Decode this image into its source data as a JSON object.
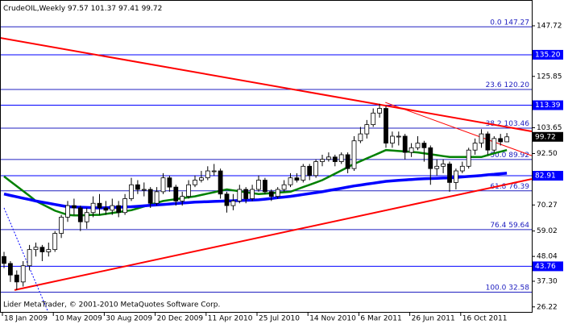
{
  "chart_data": {
    "type": "candlestick",
    "symbol": "CrudeOIL,Weekly",
    "footer": "Lider MetaTrader, © 2001-2010 MetaQuotes Software Corp.",
    "categories": [
      "18 Jan 2009",
      null,
      null,
      null,
      null,
      null,
      null,
      null,
      "10 May 2009",
      null,
      null,
      null,
      null,
      null,
      null,
      null,
      "30 Aug 2009",
      null,
      null,
      null,
      null,
      null,
      null,
      null,
      "20 Dec 2009",
      null,
      null,
      null,
      null,
      null,
      null,
      null,
      "11 Apr 2010",
      null,
      null,
      null,
      null,
      null,
      null,
      null,
      "25 Jul 2010",
      null,
      null,
      null,
      null,
      null,
      null,
      null,
      "14 Nov 2010",
      null,
      null,
      null,
      null,
      null,
      null,
      null,
      "6 Mar 2011",
      null,
      null,
      null,
      null,
      null,
      null,
      null,
      "26 Jun 2011",
      null,
      null,
      null,
      null,
      null,
      null,
      null,
      "16 Oct 2011",
      null,
      null,
      null,
      null,
      null,
      null,
      null
    ],
    "open": [
      48,
      45,
      40,
      37,
      44,
      51,
      52,
      50,
      51,
      58,
      65,
      70,
      69,
      63,
      67,
      71,
      69,
      68,
      70,
      67,
      73,
      79,
      77,
      77,
      71,
      76,
      82,
      78,
      72,
      74,
      79,
      81,
      82,
      85,
      85,
      75,
      70,
      72,
      77,
      73,
      77,
      81,
      76,
      74,
      77,
      79,
      82,
      81,
      87,
      83,
      89,
      90,
      91,
      89,
      92,
      86,
      98,
      101,
      105,
      110,
      112,
      97,
      100,
      100,
      93,
      95,
      97,
      95,
      86,
      87,
      88,
      80,
      85,
      87,
      94,
      97,
      101,
      94,
      99,
      97.57
    ],
    "high": [
      50,
      46,
      42,
      46,
      53,
      54,
      53,
      54,
      59,
      66,
      72,
      73,
      70,
      69,
      74,
      75,
      72,
      73,
      72,
      75,
      82,
      81,
      80,
      78,
      78,
      84,
      83,
      79,
      76,
      81,
      83,
      85,
      87,
      88,
      86,
      76,
      75,
      79,
      78,
      79,
      83,
      82,
      77,
      78,
      81,
      84,
      84,
      88,
      88,
      90,
      92,
      93,
      92,
      93,
      93,
      100,
      104,
      107,
      112,
      114,
      113,
      102,
      102,
      101,
      97,
      100,
      98,
      96,
      90,
      90,
      89,
      86,
      89,
      95,
      99,
      103,
      102,
      100,
      101,
      101.37
    ],
    "low": [
      43,
      37,
      33.5,
      35,
      42,
      48,
      46,
      48,
      50,
      56,
      63,
      66,
      59,
      60,
      65,
      66,
      66,
      66,
      65,
      66,
      72,
      75,
      74,
      69,
      70,
      75,
      76,
      70,
      70,
      73,
      78,
      80,
      81,
      83,
      73,
      67,
      68,
      71,
      71,
      72,
      76,
      75,
      72,
      73,
      76,
      78,
      80,
      80,
      81,
      82,
      87,
      89,
      87,
      88,
      84,
      85,
      97,
      99,
      104,
      108,
      95,
      95,
      96,
      90,
      91,
      94,
      89,
      79,
      83,
      84,
      76,
      77,
      84,
      86,
      92,
      95,
      92,
      93,
      96,
      97.41
    ],
    "close": [
      45,
      40,
      37,
      44,
      51,
      52,
      50,
      51,
      58,
      65,
      70,
      69,
      63,
      67,
      71,
      69,
      68,
      70,
      67,
      73,
      79,
      77,
      77,
      71,
      76,
      82,
      78,
      72,
      74,
      79,
      81,
      82,
      85,
      85,
      75,
      70,
      72,
      77,
      73,
      77,
      81,
      76,
      74,
      77,
      79,
      82,
      81,
      87,
      83,
      89,
      90,
      91,
      89,
      92,
      86,
      98,
      101,
      105,
      110,
      112,
      97,
      100,
      100,
      93,
      95,
      97,
      95,
      86,
      87,
      88,
      80,
      85,
      87,
      94,
      97,
      101,
      94,
      99,
      97.57,
      99.72
    ],
    "series": [
      {
        "color": "#008000",
        "width": 2.5,
        "values": [
          82.6,
          80.5,
          78.4,
          76.3,
          74.2,
          72,
          70.6,
          69.2,
          67.8,
          66.9,
          66,
          65.8,
          65.8,
          65.9,
          66,
          66,
          66.4,
          66.8,
          67.2,
          67.6,
          68,
          68.8,
          69.6,
          70.4,
          71.2,
          72,
          72.4,
          72.8,
          73.2,
          73.6,
          74,
          74.6,
          75.2,
          75.8,
          76.4,
          77,
          76.6,
          76.2,
          75.8,
          75.4,
          75,
          75.2,
          75.4,
          75.6,
          75.8,
          76,
          77,
          78,
          79,
          80,
          81,
          82.4,
          83.8,
          85.2,
          86.6,
          88,
          89.2,
          90.4,
          91.6,
          92.8,
          94,
          93.8,
          93.6,
          93.4,
          93.2,
          93,
          92.6,
          92.2,
          91.8,
          91.4,
          91,
          91,
          91,
          91,
          91,
          91,
          91.8,
          92.6,
          93.3,
          94
        ]
      },
      {
        "color": "#0000ff",
        "width": 3.5,
        "values": [
          75,
          74.4,
          73.8,
          73.2,
          72.6,
          72,
          71.5,
          71,
          70.5,
          70,
          69.5,
          69.4,
          69.3,
          69.2,
          69.1,
          69,
          69.1,
          69.2,
          69.3,
          69.4,
          69.5,
          69.7,
          69.9,
          70.1,
          70.3,
          70.5,
          70.7,
          70.9,
          71.1,
          71.3,
          71.5,
          71.6,
          71.7,
          71.8,
          71.9,
          72,
          72.1,
          72.2,
          72.3,
          72.4,
          72.5,
          72.8,
          73.1,
          73.4,
          73.7,
          74,
          74.4,
          74.8,
          75.2,
          75.6,
          76,
          76.5,
          77,
          77.5,
          78,
          78.5,
          78.9,
          79.3,
          79.7,
          80.1,
          80.5,
          80.7,
          80.9,
          81.1,
          81.3,
          81.5,
          81.6,
          81.7,
          81.8,
          81.9,
          82,
          82.2,
          82.4,
          82.6,
          82.8,
          83,
          83.3,
          83.5,
          83.8,
          84
        ]
      }
    ],
    "trendlines": [
      {
        "color": "#ff0000",
        "width": 2,
        "start": [
          -0.63,
          142.5
        ],
        "end": [
          82.9,
          102.1
        ]
      },
      {
        "color": "#ff0000",
        "width": 1,
        "start": [
          59.9,
          114.6
        ],
        "end": [
          82.9,
          91.6
        ]
      },
      {
        "color": "#ff0000",
        "width": 2,
        "start": [
          1.65,
          33.5
        ],
        "end": [
          82.9,
          81.5
        ]
      },
      {
        "color": "#0000ff",
        "width": 1,
        "dashed": true,
        "start": [
          0,
          69
        ],
        "end": [
          7.2,
          22.3
        ]
      }
    ],
    "hlines": [
      {
        "value": 135.2,
        "label": "135.20"
      },
      113.39,
      82.91,
      43.76
    ],
    "hline_color": "#0000ff",
    "fibo_color": "#2020c0",
    "fibo": [
      {
        "level": {
          "value": 0,
          "label": "0.0"
        },
        "price": 147.27
      },
      {
        "level": 23.6,
        "price": {
          "value": 120.2,
          "label": "120.20"
        }
      },
      {
        "level": 38.2,
        "price": 103.46
      },
      {
        "level": {
          "value": 50,
          "label": "50.0"
        },
        "price": 89.92
      },
      {
        "level": 61.8,
        "price": 76.39
      },
      {
        "level": 76.4,
        "price": 59.64
      },
      {
        "level": {
          "value": 100,
          "label": "100.0"
        },
        "price": 32.58
      }
    ],
    "ylim": [
      24.4,
      158.17
    ],
    "yticks": [
      147.72,
      125.85,
      103.65,
      {
        "value": 92.5,
        "label": "92.50"
      },
      70.27,
      59.02,
      48.04,
      {
        "value": 37.3,
        "label": "37.30"
      },
      26.22
    ],
    "grid": false
  }
}
